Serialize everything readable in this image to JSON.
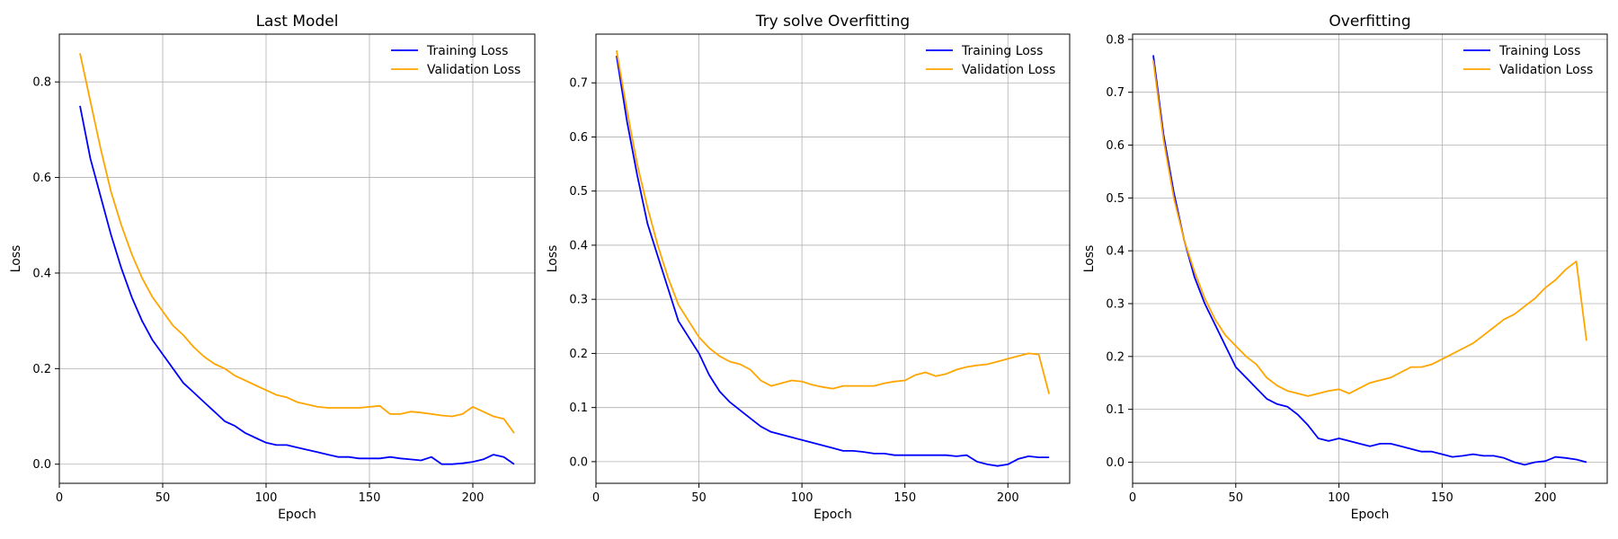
{
  "chart_data": [
    {
      "type": "line",
      "title": "Last Model",
      "xlabel": "Epoch",
      "ylabel": "Loss",
      "xlim": [
        0,
        230
      ],
      "ylim": [
        -0.04,
        0.9
      ],
      "xticks": [
        0,
        50,
        100,
        150,
        200
      ],
      "yticks": [
        0.0,
        0.2,
        0.4,
        0.6,
        0.8
      ],
      "yticklabels": [
        "0.0",
        "0.2",
        "0.4",
        "0.6",
        "0.8"
      ],
      "grid": true,
      "legend": "top-right",
      "series": [
        {
          "name": "Training Loss",
          "color": "#0000ff",
          "x": [
            10,
            15,
            20,
            25,
            30,
            35,
            40,
            45,
            50,
            55,
            60,
            65,
            70,
            75,
            80,
            85,
            90,
            95,
            100,
            105,
            110,
            115,
            120,
            125,
            130,
            135,
            140,
            145,
            150,
            155,
            160,
            165,
            170,
            175,
            180,
            185,
            190,
            195,
            200,
            205,
            210,
            215,
            220
          ],
          "y": [
            0.75,
            0.64,
            0.56,
            0.48,
            0.41,
            0.35,
            0.3,
            0.26,
            0.23,
            0.2,
            0.17,
            0.15,
            0.13,
            0.11,
            0.09,
            0.08,
            0.065,
            0.055,
            0.045,
            0.04,
            0.04,
            0.035,
            0.03,
            0.025,
            0.02,
            0.015,
            0.015,
            0.012,
            0.012,
            0.012,
            0.015,
            0.012,
            0.01,
            0.008,
            0.015,
            0.0,
            0.0,
            0.002,
            0.005,
            0.01,
            0.02,
            0.015,
            0.0
          ]
        },
        {
          "name": "Validation Loss",
          "color": "#ffa500",
          "x": [
            10,
            15,
            20,
            25,
            30,
            35,
            40,
            45,
            50,
            55,
            60,
            65,
            70,
            75,
            80,
            85,
            90,
            95,
            100,
            105,
            110,
            115,
            120,
            125,
            130,
            135,
            140,
            145,
            150,
            155,
            160,
            165,
            170,
            175,
            180,
            185,
            190,
            195,
            200,
            205,
            210,
            215,
            220
          ],
          "y": [
            0.86,
            0.76,
            0.66,
            0.57,
            0.5,
            0.44,
            0.39,
            0.35,
            0.32,
            0.29,
            0.27,
            0.245,
            0.225,
            0.21,
            0.2,
            0.185,
            0.175,
            0.165,
            0.155,
            0.145,
            0.14,
            0.13,
            0.125,
            0.12,
            0.118,
            0.118,
            0.118,
            0.118,
            0.12,
            0.122,
            0.105,
            0.105,
            0.11,
            0.108,
            0.105,
            0.102,
            0.1,
            0.105,
            0.12,
            0.11,
            0.1,
            0.095,
            0.065
          ]
        }
      ]
    },
    {
      "type": "line",
      "title": "Try solve Overfitting",
      "xlabel": "Epoch",
      "ylabel": "Loss",
      "xlim": [
        0,
        230
      ],
      "ylim": [
        -0.04,
        0.79
      ],
      "xticks": [
        0,
        50,
        100,
        150,
        200
      ],
      "yticks": [
        0.0,
        0.1,
        0.2,
        0.3,
        0.4,
        0.5,
        0.6,
        0.7
      ],
      "yticklabels": [
        "0.0",
        "0.1",
        "0.2",
        "0.3",
        "0.4",
        "0.5",
        "0.6",
        "0.7"
      ],
      "grid": true,
      "legend": "top-right",
      "series": [
        {
          "name": "Training Loss",
          "color": "#0000ff",
          "x": [
            10,
            15,
            20,
            25,
            30,
            35,
            40,
            45,
            50,
            55,
            60,
            65,
            70,
            75,
            80,
            85,
            90,
            95,
            100,
            105,
            110,
            115,
            120,
            125,
            130,
            135,
            140,
            145,
            150,
            155,
            160,
            165,
            170,
            175,
            180,
            185,
            190,
            195,
            200,
            205,
            210,
            215,
            220
          ],
          "y": [
            0.75,
            0.63,
            0.53,
            0.44,
            0.38,
            0.32,
            0.26,
            0.23,
            0.2,
            0.16,
            0.13,
            0.11,
            0.095,
            0.08,
            0.065,
            0.055,
            0.05,
            0.045,
            0.04,
            0.035,
            0.03,
            0.025,
            0.02,
            0.02,
            0.018,
            0.015,
            0.015,
            0.012,
            0.012,
            0.012,
            0.012,
            0.012,
            0.012,
            0.01,
            0.012,
            0.0,
            -0.005,
            -0.008,
            -0.005,
            0.005,
            0.01,
            0.008,
            0.008
          ]
        },
        {
          "name": "Validation Loss",
          "color": "#ffa500",
          "x": [
            10,
            15,
            20,
            25,
            30,
            35,
            40,
            45,
            50,
            55,
            60,
            65,
            70,
            75,
            80,
            85,
            90,
            95,
            100,
            105,
            110,
            115,
            120,
            125,
            130,
            135,
            140,
            145,
            150,
            155,
            160,
            165,
            170,
            175,
            180,
            185,
            190,
            195,
            200,
            205,
            210,
            215,
            220
          ],
          "y": [
            0.76,
            0.65,
            0.55,
            0.47,
            0.4,
            0.34,
            0.29,
            0.26,
            0.23,
            0.21,
            0.195,
            0.185,
            0.18,
            0.17,
            0.15,
            0.14,
            0.145,
            0.15,
            0.148,
            0.142,
            0.138,
            0.135,
            0.14,
            0.14,
            0.14,
            0.14,
            0.145,
            0.148,
            0.15,
            0.16,
            0.165,
            0.158,
            0.162,
            0.17,
            0.175,
            0.178,
            0.18,
            0.185,
            0.19,
            0.195,
            0.2,
            0.198,
            0.125
          ]
        }
      ]
    },
    {
      "type": "line",
      "title": "Overfitting",
      "xlabel": "Epoch",
      "ylabel": "Loss",
      "xlim": [
        0,
        230
      ],
      "ylim": [
        -0.04,
        0.81
      ],
      "xticks": [
        0,
        50,
        100,
        150,
        200
      ],
      "yticks": [
        0.0,
        0.1,
        0.2,
        0.3,
        0.4,
        0.5,
        0.6,
        0.7,
        0.8
      ],
      "yticklabels": [
        "0.0",
        "0.1",
        "0.2",
        "0.3",
        "0.4",
        "0.5",
        "0.6",
        "0.7",
        "0.8"
      ],
      "grid": true,
      "legend": "top-right",
      "series": [
        {
          "name": "Training Loss",
          "color": "#0000ff",
          "x": [
            10,
            15,
            20,
            25,
            30,
            35,
            40,
            45,
            50,
            55,
            60,
            65,
            70,
            75,
            80,
            85,
            90,
            95,
            100,
            105,
            110,
            115,
            120,
            125,
            130,
            135,
            140,
            145,
            150,
            155,
            160,
            165,
            170,
            175,
            180,
            185,
            190,
            195,
            200,
            205,
            210,
            215,
            220
          ],
          "y": [
            0.77,
            0.62,
            0.51,
            0.42,
            0.35,
            0.3,
            0.26,
            0.22,
            0.18,
            0.16,
            0.14,
            0.12,
            0.11,
            0.105,
            0.09,
            0.07,
            0.045,
            0.04,
            0.045,
            0.04,
            0.035,
            0.03,
            0.035,
            0.035,
            0.03,
            0.025,
            0.02,
            0.02,
            0.015,
            0.01,
            0.012,
            0.015,
            0.012,
            0.012,
            0.008,
            0.0,
            -0.005,
            0.0,
            0.002,
            0.01,
            0.008,
            0.005,
            0.0
          ]
        },
        {
          "name": "Validation Loss",
          "color": "#ffa500",
          "x": [
            10,
            15,
            20,
            25,
            30,
            35,
            40,
            45,
            50,
            55,
            60,
            65,
            70,
            75,
            80,
            85,
            90,
            95,
            100,
            105,
            110,
            115,
            120,
            125,
            130,
            135,
            140,
            145,
            150,
            155,
            160,
            165,
            170,
            175,
            180,
            185,
            190,
            195,
            200,
            205,
            210,
            215,
            220
          ],
          "y": [
            0.76,
            0.61,
            0.5,
            0.42,
            0.36,
            0.31,
            0.27,
            0.24,
            0.22,
            0.2,
            0.185,
            0.16,
            0.145,
            0.135,
            0.13,
            0.125,
            0.13,
            0.135,
            0.138,
            0.13,
            0.14,
            0.15,
            0.155,
            0.16,
            0.17,
            0.18,
            0.18,
            0.185,
            0.195,
            0.205,
            0.215,
            0.225,
            0.24,
            0.255,
            0.27,
            0.28,
            0.295,
            0.31,
            0.33,
            0.345,
            0.365,
            0.38,
            0.23
          ]
        }
      ]
    }
  ]
}
